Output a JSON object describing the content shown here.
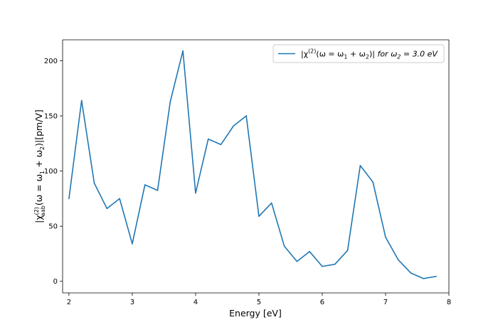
{
  "chart_data": {
    "type": "line",
    "xlabel": "Energy [eV]",
    "ylabel": "|χ(2)aab(ω = ω1 + ω2)|[pm/V]",
    "xlim": [
      1.9,
      8.0
    ],
    "ylim": [
      -10.5,
      219
    ],
    "xticks": [
      "2",
      "3",
      "4",
      "5",
      "6",
      "7",
      "8"
    ],
    "yticks": [
      "0",
      "50",
      "100",
      "150",
      "200"
    ],
    "grid": false,
    "legend_position": "top-right",
    "series": [
      {
        "name": "|χ(2)(ω = ω1 + ω2)| for ω2 = 3.0 eV",
        "color": "#1f77b4",
        "x": [
          2.0,
          2.2,
          2.4,
          2.6,
          2.8,
          3.0,
          3.2,
          3.4,
          3.6,
          3.8,
          4.0,
          4.2,
          4.4,
          4.6,
          4.8,
          5.0,
          5.2,
          5.4,
          5.6,
          5.8,
          6.0,
          6.2,
          6.4,
          6.6,
          6.8,
          7.0,
          7.2,
          7.4,
          7.6,
          7.8
        ],
        "y": [
          75,
          164,
          89,
          66,
          75,
          34,
          87.5,
          82.5,
          163,
          209,
          80,
          129,
          124,
          141,
          150,
          59,
          71,
          32,
          18,
          27,
          13.5,
          15.5,
          28,
          105,
          90,
          40,
          19.5,
          7.5,
          2.5,
          4.5
        ]
      }
    ]
  }
}
